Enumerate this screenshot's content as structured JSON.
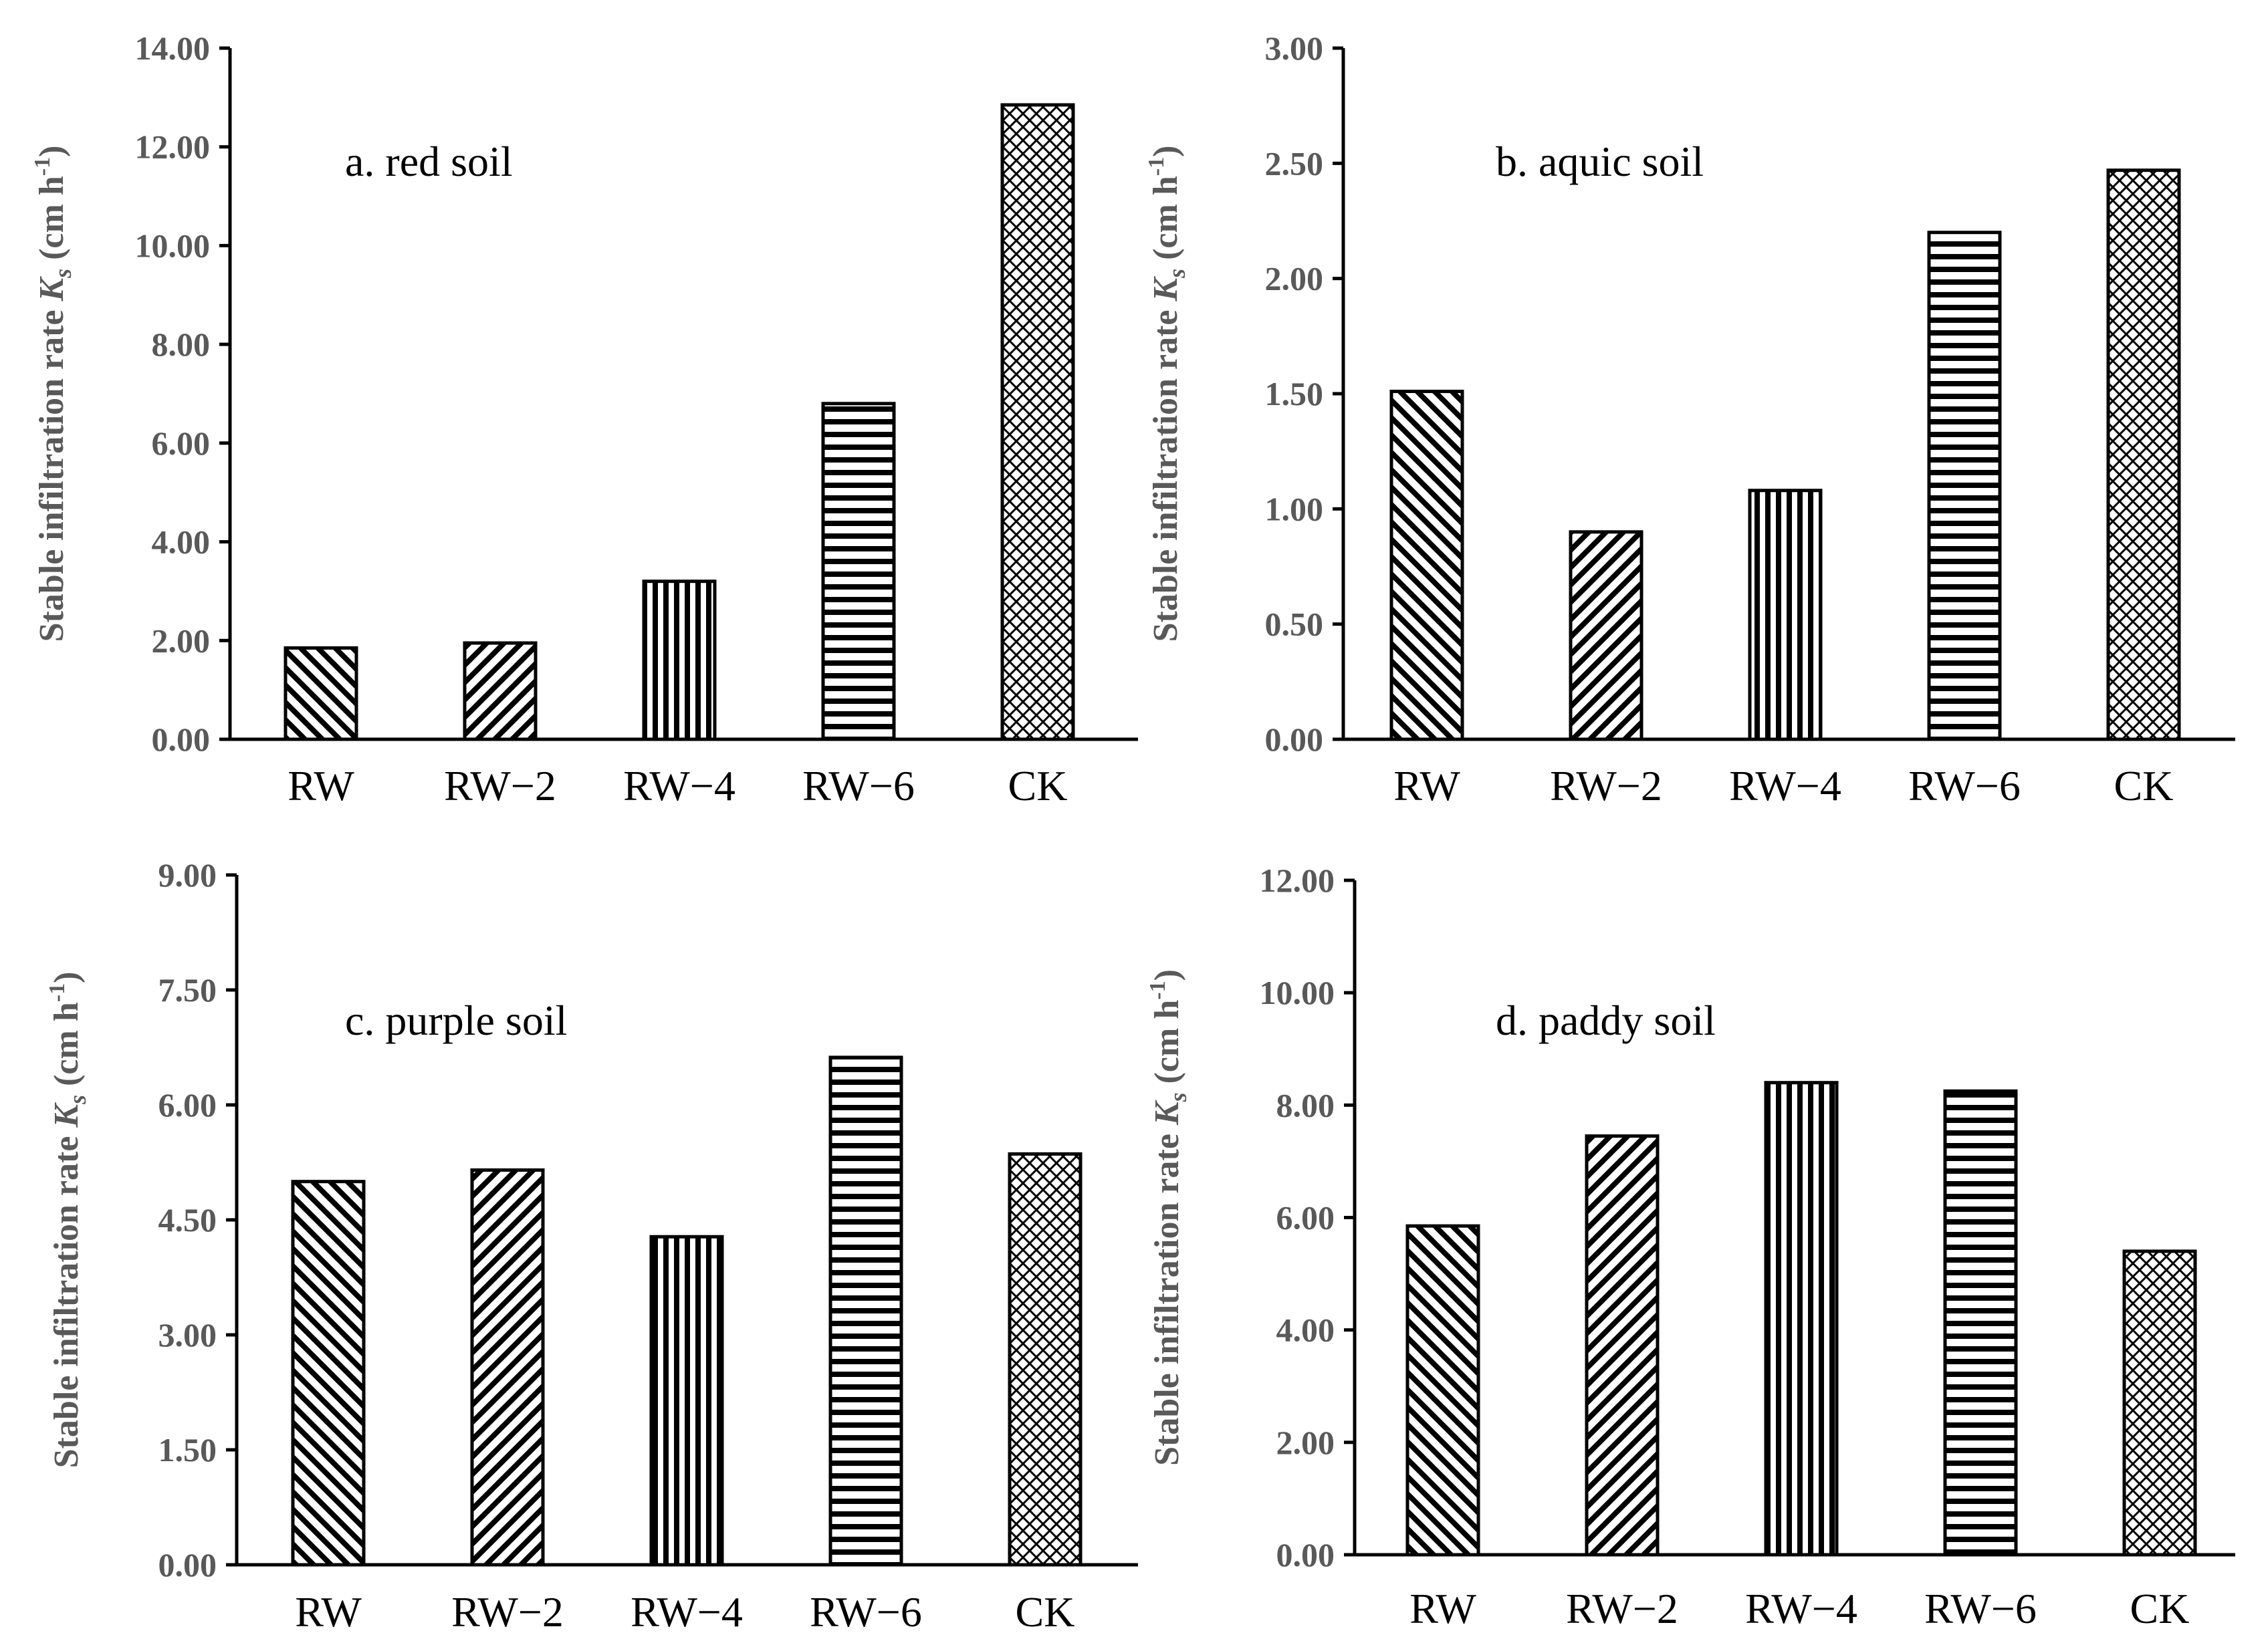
{
  "figure": {
    "y_axis_label_main": "Stable infiltration rate ",
    "y_axis_label_symbol": "K",
    "y_axis_label_subscript": "s",
    "y_axis_label_unit": " (cm h",
    "y_axis_label_exponent": "-1",
    "y_axis_label_close": ")"
  },
  "chart_data": [
    {
      "type": "bar",
      "title": "a. red soil",
      "categories": [
        "RW",
        "RW−2",
        "RW−4",
        "RW−6",
        "CK"
      ],
      "patterns": [
        "diag-back",
        "diag-fwd",
        "vertical",
        "horizontal",
        "cross"
      ],
      "values": [
        1.85,
        1.95,
        3.2,
        6.8,
        12.85
      ],
      "ylim": [
        0,
        14
      ],
      "yticks": [
        "0.00",
        "2.00",
        "4.00",
        "6.00",
        "8.00",
        "10.00",
        "12.00",
        "14.00"
      ],
      "ylabel": "Stable infiltration rate Ks (cm h-1)",
      "xlabel": ""
    },
    {
      "type": "bar",
      "title": "b. aquic soil",
      "categories": [
        "RW",
        "RW−2",
        "RW−4",
        "RW−6",
        "CK"
      ],
      "patterns": [
        "diag-back",
        "diag-fwd",
        "vertical",
        "horizontal",
        "cross"
      ],
      "values": [
        1.51,
        0.9,
        1.08,
        2.2,
        2.47
      ],
      "ylim": [
        0,
        3
      ],
      "yticks": [
        "0.00",
        "0.50",
        "1.00",
        "1.50",
        "2.00",
        "2.50",
        "3.00"
      ],
      "ylabel": "Stable infiltration rate Ks (cm h-1)",
      "xlabel": ""
    },
    {
      "type": "bar",
      "title": "c. purple soil",
      "categories": [
        "RW",
        "RW−2",
        "RW−4",
        "RW−6",
        "CK"
      ],
      "patterns": [
        "diag-back",
        "diag-fwd",
        "vertical",
        "horizontal",
        "cross"
      ],
      "values": [
        5.0,
        5.15,
        4.28,
        6.62,
        5.36
      ],
      "ylim": [
        0,
        9
      ],
      "yticks": [
        "0.00",
        "1.50",
        "3.00",
        "4.50",
        "6.00",
        "7.50",
        "9.00"
      ],
      "ylabel": "Stable infiltration rate Ks (cm h-1)",
      "xlabel": ""
    },
    {
      "type": "bar",
      "title": "d. paddy soil",
      "categories": [
        "RW",
        "RW−2",
        "RW−4",
        "RW−6",
        "CK"
      ],
      "patterns": [
        "diag-back",
        "diag-fwd",
        "vertical",
        "horizontal",
        "cross"
      ],
      "values": [
        5.85,
        7.45,
        8.4,
        8.25,
        5.4
      ],
      "ylim": [
        0,
        12
      ],
      "yticks": [
        "0.00",
        "2.00",
        "4.00",
        "6.00",
        "8.00",
        "10.00",
        "12.00"
      ],
      "ylabel": "Stable infiltration rate Ks (cm h-1)",
      "xlabel": ""
    }
  ]
}
